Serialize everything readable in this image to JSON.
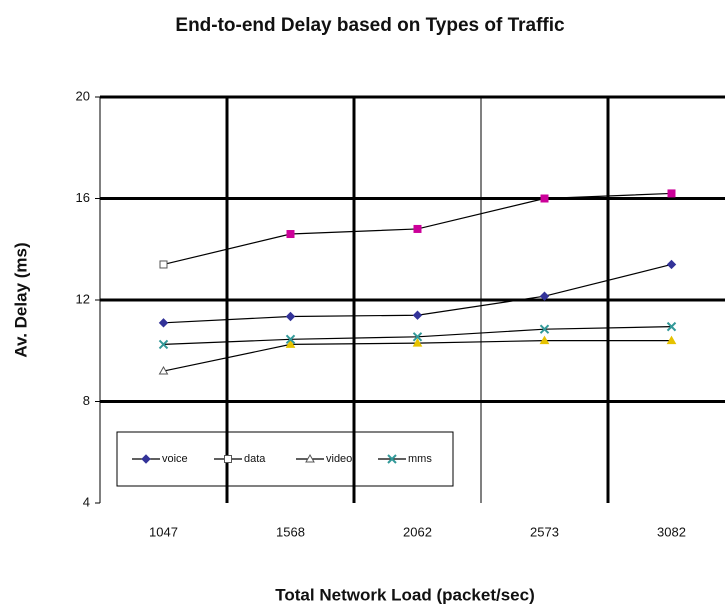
{
  "chart_data": {
    "type": "line",
    "title": "End-to-end Delay based on Types of Traffic",
    "x_label": "Total Network Load (packet/sec)",
    "y_label": "Av. Delay (ms)",
    "categories": [
      "1047",
      "1568",
      "2062",
      "2573",
      "3082"
    ],
    "series": [
      {
        "name": "voice",
        "color": "#333399",
        "marker": "diamond",
        "values": [
          11.1,
          11.35,
          11.4,
          12.15,
          13.4
        ]
      },
      {
        "name": "data",
        "color": "#cc0099",
        "marker": "square",
        "values": [
          13.4,
          14.6,
          14.8,
          16.0,
          16.2
        ]
      },
      {
        "name": "video",
        "color": "#e6c200",
        "marker": "triangle",
        "values": [
          9.2,
          10.25,
          10.3,
          10.4,
          10.4
        ]
      },
      {
        "name": "mms",
        "color": "#339999",
        "marker": "x",
        "values": [
          10.25,
          10.45,
          10.55,
          10.85,
          10.95
        ]
      }
    ],
    "line_color": "#000000",
    "ylim": [
      4,
      20
    ],
    "yticks": [
      4,
      8,
      12,
      16,
      20
    ],
    "grid": true
  }
}
